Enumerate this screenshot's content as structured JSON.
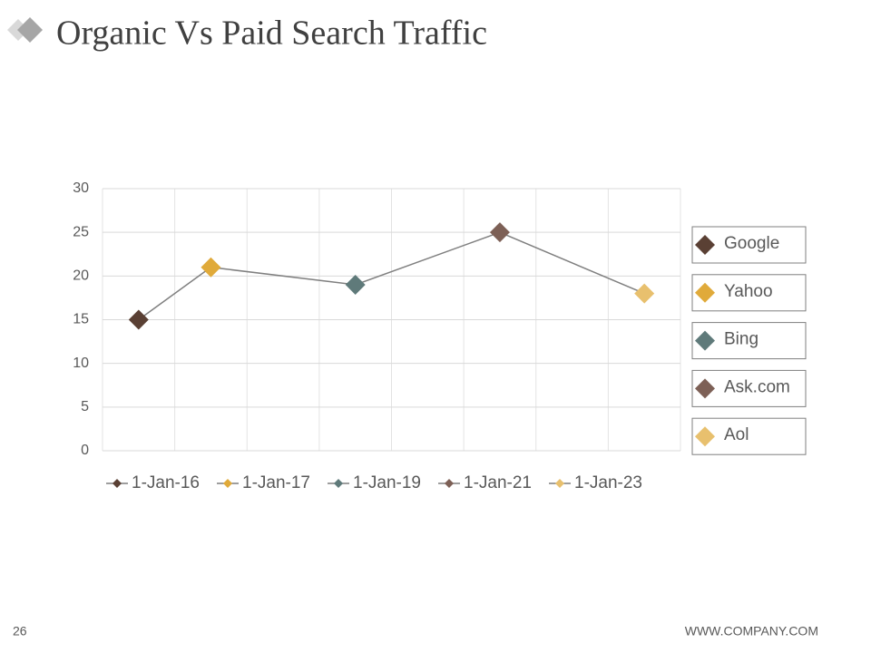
{
  "chart_data": {
    "type": "line",
    "title": "Organic Vs Paid Search Traffic",
    "x": [
      "1-Jan-16",
      "1-Jan-17",
      "1-Jan-19",
      "1-Jan-21",
      "1-Jan-23"
    ],
    "values": [
      15,
      21,
      19,
      25,
      18
    ],
    "points": [
      {
        "name": "Google",
        "color": "#5a4034"
      },
      {
        "name": "Yahoo",
        "color": "#e0aa3a"
      },
      {
        "name": "Bing",
        "color": "#5f7a7a"
      },
      {
        "name": "Ask.com",
        "color": "#7d6056"
      },
      {
        "name": "Aol",
        "color": "#e8c06e"
      }
    ],
    "line_color": "#7f7f7f",
    "ylim": [
      0,
      30
    ],
    "yticks": [
      0,
      5,
      10,
      15,
      20,
      25,
      30
    ],
    "grid": true,
    "legend": "right"
  },
  "footer": {
    "page": 26,
    "url": "WWW.COMPANY.COM"
  }
}
